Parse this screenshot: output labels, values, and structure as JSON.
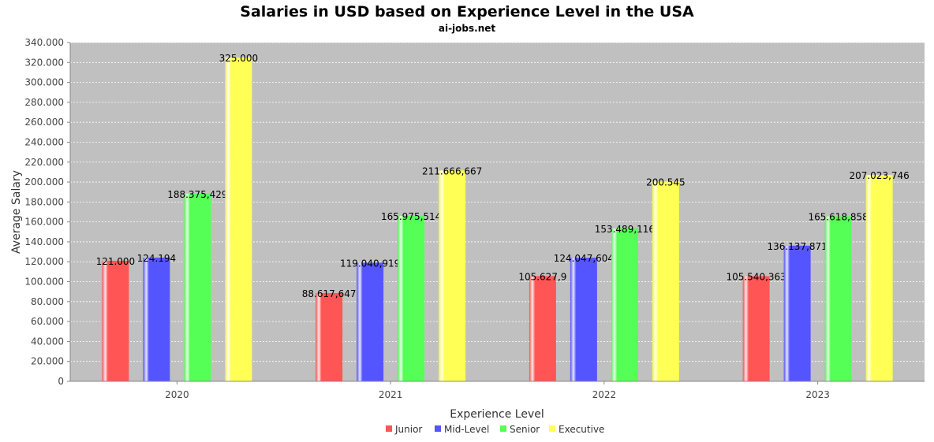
{
  "chart_data": {
    "type": "bar",
    "title": "Salaries in USD based on Experience Level in the USA",
    "subtitle": "ai-jobs.net",
    "xlabel": "Experience Level",
    "ylabel": "Average Salary",
    "ylim": [
      0,
      340000
    ],
    "ytick_step": 20000,
    "ytick_labels": [
      "0",
      "20.000",
      "40.000",
      "60.000",
      "80.000",
      "100.000",
      "120.000",
      "140.000",
      "160.000",
      "180.000",
      "200.000",
      "220.000",
      "240.000",
      "260.000",
      "280.000",
      "300.000",
      "320.000",
      "340.000"
    ],
    "grid": true,
    "legend_position": "bottom",
    "categories": [
      "2020",
      "2021",
      "2022",
      "2023"
    ],
    "series": [
      {
        "name": "Junior",
        "color": "#ff5555",
        "values": [
          121000,
          88617.647,
          105627.9,
          105540.363
        ],
        "labels": [
          "121.000",
          "88.617,647",
          "105.627,9",
          "105.540,363"
        ]
      },
      {
        "name": "Mid-Level",
        "color": "#5555ff",
        "values": [
          124194,
          119040.919,
          124047.604,
          136137.871
        ],
        "labels": [
          "124.194",
          "119.040,919",
          "124.047,604",
          "136.137,871"
        ]
      },
      {
        "name": "Senior",
        "color": "#55ff55",
        "values": [
          188375.429,
          165975.514,
          153489.116,
          165618.858
        ],
        "labels": [
          "188.375,429",
          "165.975,514",
          "153.489,116",
          "165.618,858"
        ]
      },
      {
        "name": "Executive",
        "color": "#ffff55",
        "values": [
          325000,
          211666.667,
          200545,
          207023.746
        ],
        "labels": [
          "325.000",
          "211.666,667",
          "200.545",
          "207.023,746"
        ]
      }
    ]
  }
}
